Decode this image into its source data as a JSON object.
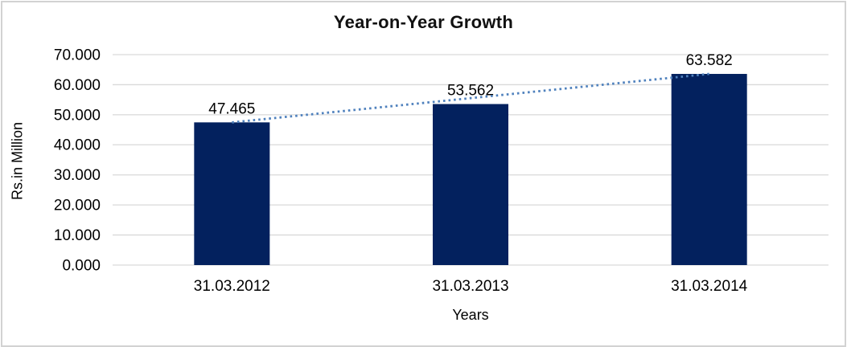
{
  "window": {
    "background_color": "#ffffff",
    "frame_border_color": "#d2d2d2"
  },
  "chart_data": {
    "type": "bar",
    "title": "Year-on-Year Growth",
    "xlabel": "Years",
    "ylabel": "Rs.in Million",
    "categories": [
      "31.03.2012",
      "31.03.2013",
      "31.03.2014"
    ],
    "values": [
      47.465,
      53.562,
      63.582
    ],
    "data_labels": [
      "47.465",
      "53.562",
      "63.582"
    ],
    "ylim": [
      0,
      70
    ],
    "ytick_step": 10,
    "ytick_labels": [
      "0.000",
      "10.000",
      "20.000",
      "30.000",
      "40.000",
      "50.000",
      "60.000",
      "70.000"
    ],
    "grid": true,
    "legend": "none",
    "bar_color": "#03215e",
    "gridline_color": "#d9d9d9",
    "text_color": "#000000",
    "trendline": {
      "type": "linear",
      "style": "dotted",
      "color": "#4f81bd"
    }
  }
}
